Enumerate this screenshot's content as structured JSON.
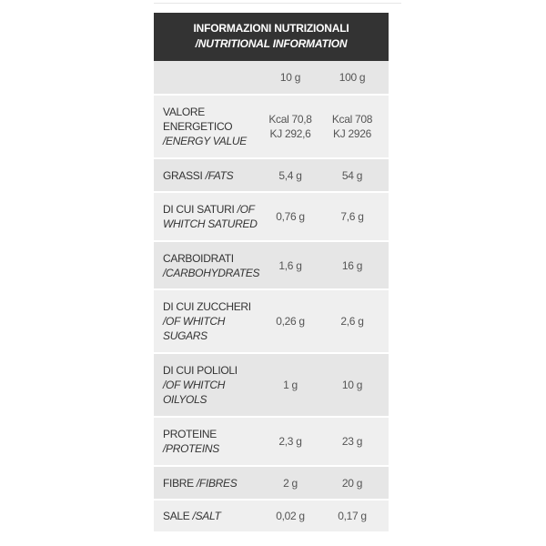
{
  "header": {
    "title": "INFORMAZIONI NUTRIZIONALI",
    "subtitle": "/NUTRITIONAL INFORMATION"
  },
  "columns": {
    "c1": "10 g",
    "c2": "100 g"
  },
  "rows": [
    {
      "lines": [
        [
          {
            "t": "VALORE"
          }
        ],
        [
          {
            "t": "ENERGETICO"
          }
        ],
        [
          {
            "t": "/ENERGY VALUE",
            "i": true
          }
        ]
      ],
      "v1": [
        "Kcal 70,8",
        "KJ 292,6"
      ],
      "v2": [
        "Kcal 708",
        "KJ 2926"
      ]
    },
    {
      "lines": [
        [
          {
            "t": "GRASSI "
          },
          {
            "t": "/FATS",
            "i": true
          }
        ]
      ],
      "v1": [
        "5,4 g"
      ],
      "v2": [
        "54 g"
      ]
    },
    {
      "lines": [
        [
          {
            "t": "DI CUI SATURI "
          },
          {
            "t": "/OF",
            "i": true
          }
        ],
        [
          {
            "t": "WHITCH SATURED",
            "i": true
          }
        ]
      ],
      "v1": [
        "0,76 g"
      ],
      "v2": [
        "7,6 g"
      ]
    },
    {
      "lines": [
        [
          {
            "t": "CARBOIDRATI"
          }
        ],
        [
          {
            "t": "/CARBOHYDRATES",
            "i": true
          }
        ]
      ],
      "v1": [
        "1,6 g"
      ],
      "v2": [
        "16 g"
      ]
    },
    {
      "lines": [
        [
          {
            "t": "DI CUI ZUCCHERI"
          }
        ],
        [
          {
            "t": "/OF WHITCH",
            "i": true
          }
        ],
        [
          {
            "t": "SUGARS",
            "i": true
          }
        ]
      ],
      "v1": [
        "0,26 g"
      ],
      "v2": [
        "2,6 g"
      ]
    },
    {
      "lines": [
        [
          {
            "t": "DI CUI POLIOLI"
          }
        ],
        [
          {
            "t": "/OF WHITCH",
            "i": true
          }
        ],
        [
          {
            "t": "OILYOLS",
            "i": true
          }
        ]
      ],
      "v1": [
        "1 g"
      ],
      "v2": [
        "10 g"
      ]
    },
    {
      "lines": [
        [
          {
            "t": "PROTEINE"
          }
        ],
        [
          {
            "t": "/PROTEINS",
            "i": true
          }
        ]
      ],
      "v1": [
        "2,3 g"
      ],
      "v2": [
        "23 g"
      ]
    },
    {
      "lines": [
        [
          {
            "t": "FIBRE "
          },
          {
            "t": "/FIBRES",
            "i": true
          }
        ]
      ],
      "v1": [
        "2 g"
      ],
      "v2": [
        "20 g"
      ]
    },
    {
      "lines": [
        [
          {
            "t": "SALE "
          },
          {
            "t": "/SALT",
            "i": true
          }
        ]
      ],
      "v1": [
        "0,02 g"
      ],
      "v2": [
        "0,17 g"
      ]
    }
  ]
}
